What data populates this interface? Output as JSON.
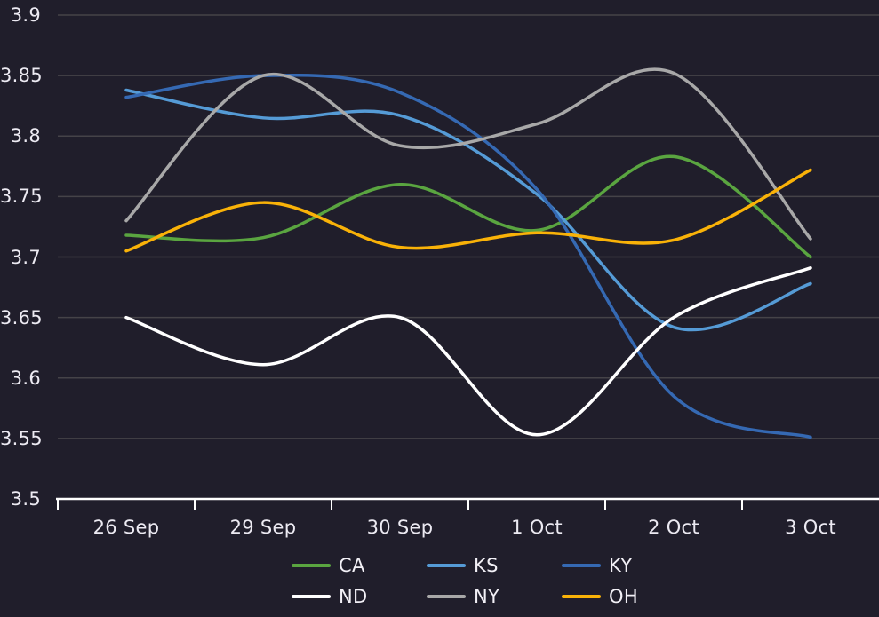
{
  "chart_data": {
    "type": "line",
    "title": "",
    "x_categories": [
      "26 Sep",
      "29 Sep",
      "30 Sep",
      "1 Oct",
      "2 Oct",
      "3 Oct"
    ],
    "y_ticks": [
      "3.5",
      "3.55",
      "3.6",
      "3.65",
      "3.7",
      "3.75",
      "3.8",
      "3.85",
      "3.9"
    ],
    "ylim": [
      3.5,
      3.9
    ],
    "grid": true,
    "smooth": true,
    "legend_position": "bottom",
    "series": [
      {
        "name": "CA",
        "color": "#5aa540",
        "values": [
          3.718,
          3.716,
          3.76,
          3.722,
          3.783,
          3.7
        ]
      },
      {
        "name": "KS",
        "color": "#559bd6",
        "values": [
          3.838,
          3.815,
          3.817,
          3.752,
          3.642,
          3.678
        ]
      },
      {
        "name": "KY",
        "color": "#3569b3",
        "values": [
          3.832,
          3.85,
          3.836,
          3.756,
          3.585,
          3.551
        ]
      },
      {
        "name": "ND",
        "color": "#ffffff",
        "values": [
          3.65,
          3.611,
          3.65,
          3.553,
          3.65,
          3.691
        ]
      },
      {
        "name": "NY",
        "color": "#a8a8a8",
        "values": [
          3.73,
          3.85,
          3.792,
          3.81,
          3.852,
          3.715
        ]
      },
      {
        "name": "OH",
        "color": "#f9b208",
        "values": [
          3.705,
          3.745,
          3.708,
          3.72,
          3.714,
          3.772
        ]
      }
    ],
    "colors": {
      "background": "#201e2b",
      "gridline": "#454348",
      "axis_line": "#ffffff",
      "tick_label": "#eceaf2",
      "legend_label": "#f2f0f6"
    }
  }
}
